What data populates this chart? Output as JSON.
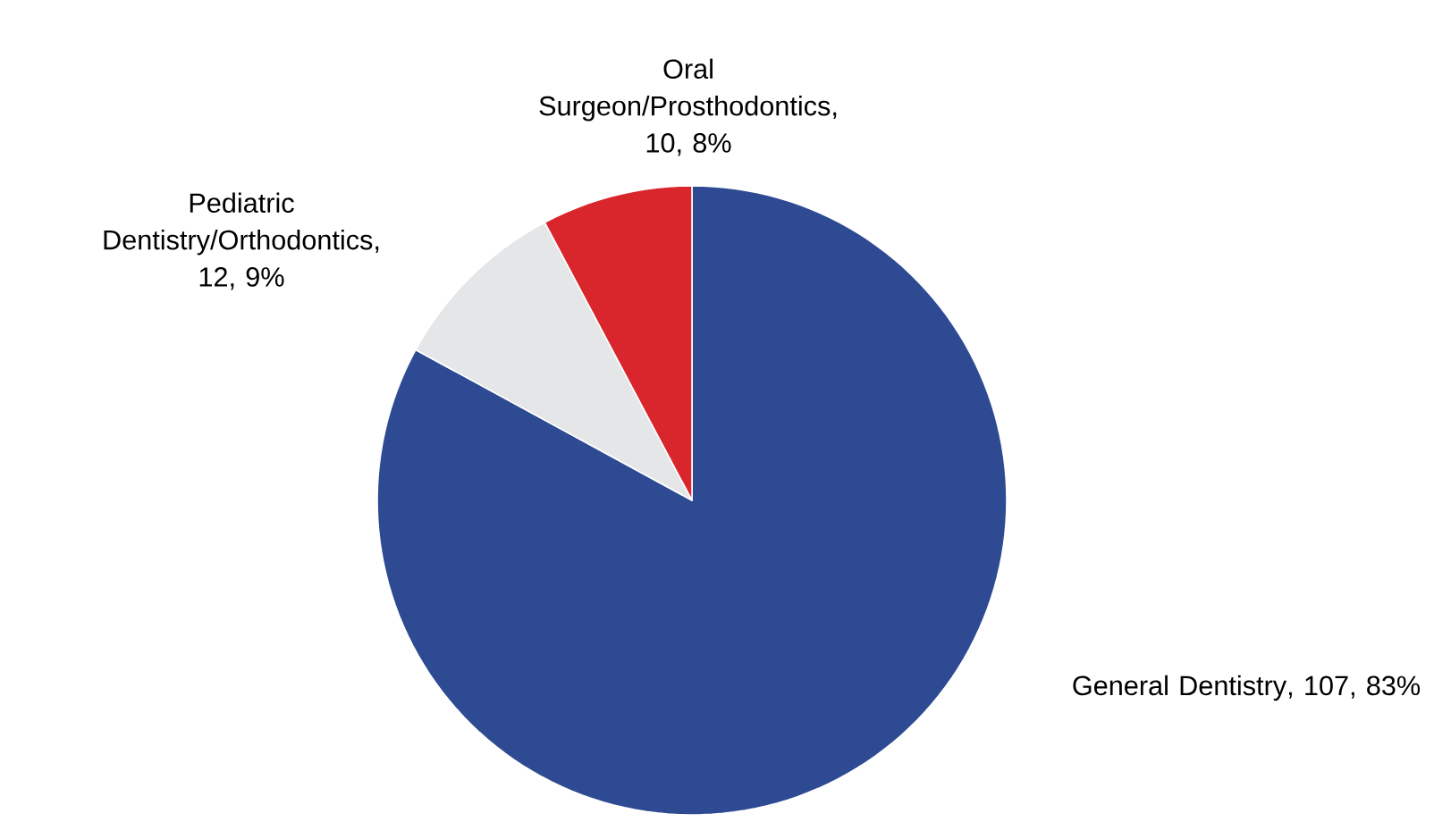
{
  "chart_data": {
    "type": "pie",
    "categories": [
      "General Dentistry",
      "Pediatric Dentistry/Orthodontics",
      "Oral Surgeon/Prosthodontics"
    ],
    "values": [
      107,
      12,
      10
    ],
    "colors": [
      "#2d4a93",
      "#e4e6e8",
      "#d8262c"
    ],
    "value_labels": [
      ", 107, 83%",
      ", 12, 9%",
      ", 10, 8%"
    ]
  }
}
